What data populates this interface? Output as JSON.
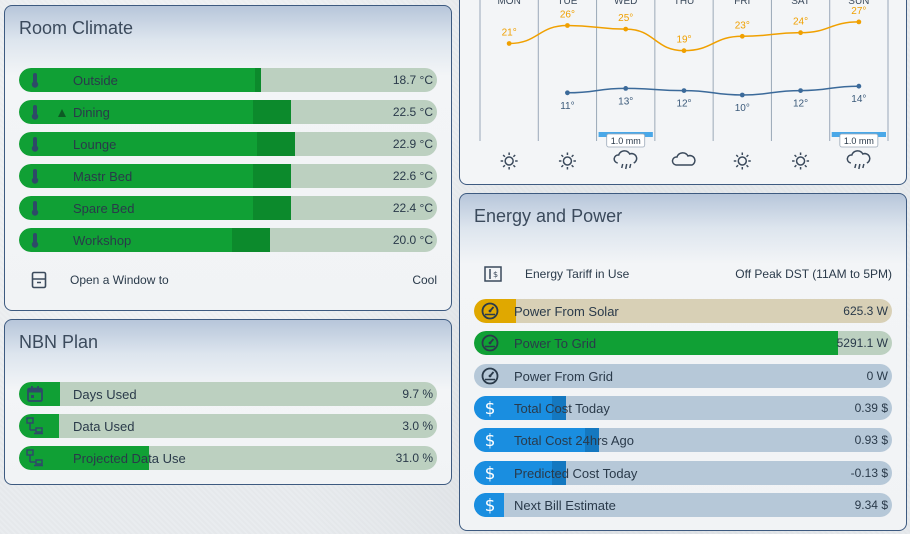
{
  "room_climate": {
    "title": "Room Climate",
    "rows": [
      {
        "label": "Outside",
        "value": "18.7 °C",
        "level": 0.58,
        "marker": false
      },
      {
        "label": "Dining",
        "value": "22.5 °C",
        "level": 0.65,
        "marker": true
      },
      {
        "label": "Lounge",
        "value": "22.9 °C",
        "level": 0.66,
        "marker": false
      },
      {
        "label": "Mastr Bed",
        "value": "22.6 °C",
        "level": 0.65,
        "marker": false
      },
      {
        "label": "Spare Bed",
        "value": "22.4 °C",
        "level": 0.65,
        "marker": false
      },
      {
        "label": "Workshop",
        "value": "20.0 °C",
        "level": 0.6,
        "marker": false
      }
    ],
    "window": {
      "label": "Open a Window to",
      "value": "Cool"
    },
    "icons": {
      "row": "thermometer-icon",
      "window": "window-icon"
    }
  },
  "nbn": {
    "title": "NBN Plan",
    "rows": [
      {
        "label": "Days Used",
        "value": "9.7 %",
        "level": 0.097,
        "icon": "calendar-icon"
      },
      {
        "label": "Data Used",
        "value": "3.0 %",
        "level": 0.03,
        "icon": "network-icon"
      },
      {
        "label": "Projected Data Use",
        "value": "31.0 %",
        "level": 0.31,
        "icon": "network-icon"
      }
    ]
  },
  "weather": {
    "days": [
      "MON",
      "TUE",
      "WED",
      "THU",
      "FRI",
      "SAT",
      "SUN"
    ],
    "highs": [
      21,
      26,
      25,
      19,
      23,
      24,
      27
    ],
    "lows": [
      null,
      11,
      13,
      12,
      10,
      12,
      14
    ],
    "hi_labels": [
      "21°",
      "26°",
      "25°",
      "19°",
      "23°",
      "24°",
      "27°"
    ],
    "lo_labels": [
      "",
      "11°",
      "13°",
      "12°",
      "10°",
      "12°",
      "14°"
    ],
    "rain": [
      "",
      "",
      "1.0 mm",
      "",
      "",
      "",
      "1.0 mm"
    ],
    "conditions": [
      "sunny",
      "sunny",
      "rainy",
      "cloudy",
      "sunny",
      "sunny",
      "rainy"
    ],
    "colors": {
      "high": "#f0a000",
      "low": "#3b6a9a",
      "rain": "#4aa8e8"
    }
  },
  "energy": {
    "title": "Energy and Power",
    "tariff": {
      "label": "Energy Tariff in Use",
      "value": "Off Peak DST (11AM to 5PM)"
    },
    "rows": [
      {
        "label": "Power From Solar",
        "value": "625.3 W",
        "level": 0.1,
        "style": "solar"
      },
      {
        "label": "Power To Grid",
        "value": "5291.1 W",
        "level": 0.87,
        "style": "grid"
      },
      {
        "label": "Power From Grid",
        "value": "0 W",
        "level": 0.0,
        "style": "grid"
      },
      {
        "label": "Total Cost Today",
        "value": "0.39 $",
        "level": 0.22,
        "style": "cost"
      },
      {
        "label": "Total Cost 24hrs Ago",
        "value": "0.93 $",
        "level": 0.3,
        "style": "cost"
      },
      {
        "label": "Predicted Cost Today",
        "value": "-0.13 $",
        "level": 0.22,
        "style": "cost"
      },
      {
        "label": "Next Bill Estimate",
        "value": "9.34 $",
        "level": 0.05,
        "style": "cost"
      }
    ],
    "colors": {
      "solar": "#e0a800",
      "grid": "#10a035",
      "cost": "#1a8ee0"
    }
  }
}
